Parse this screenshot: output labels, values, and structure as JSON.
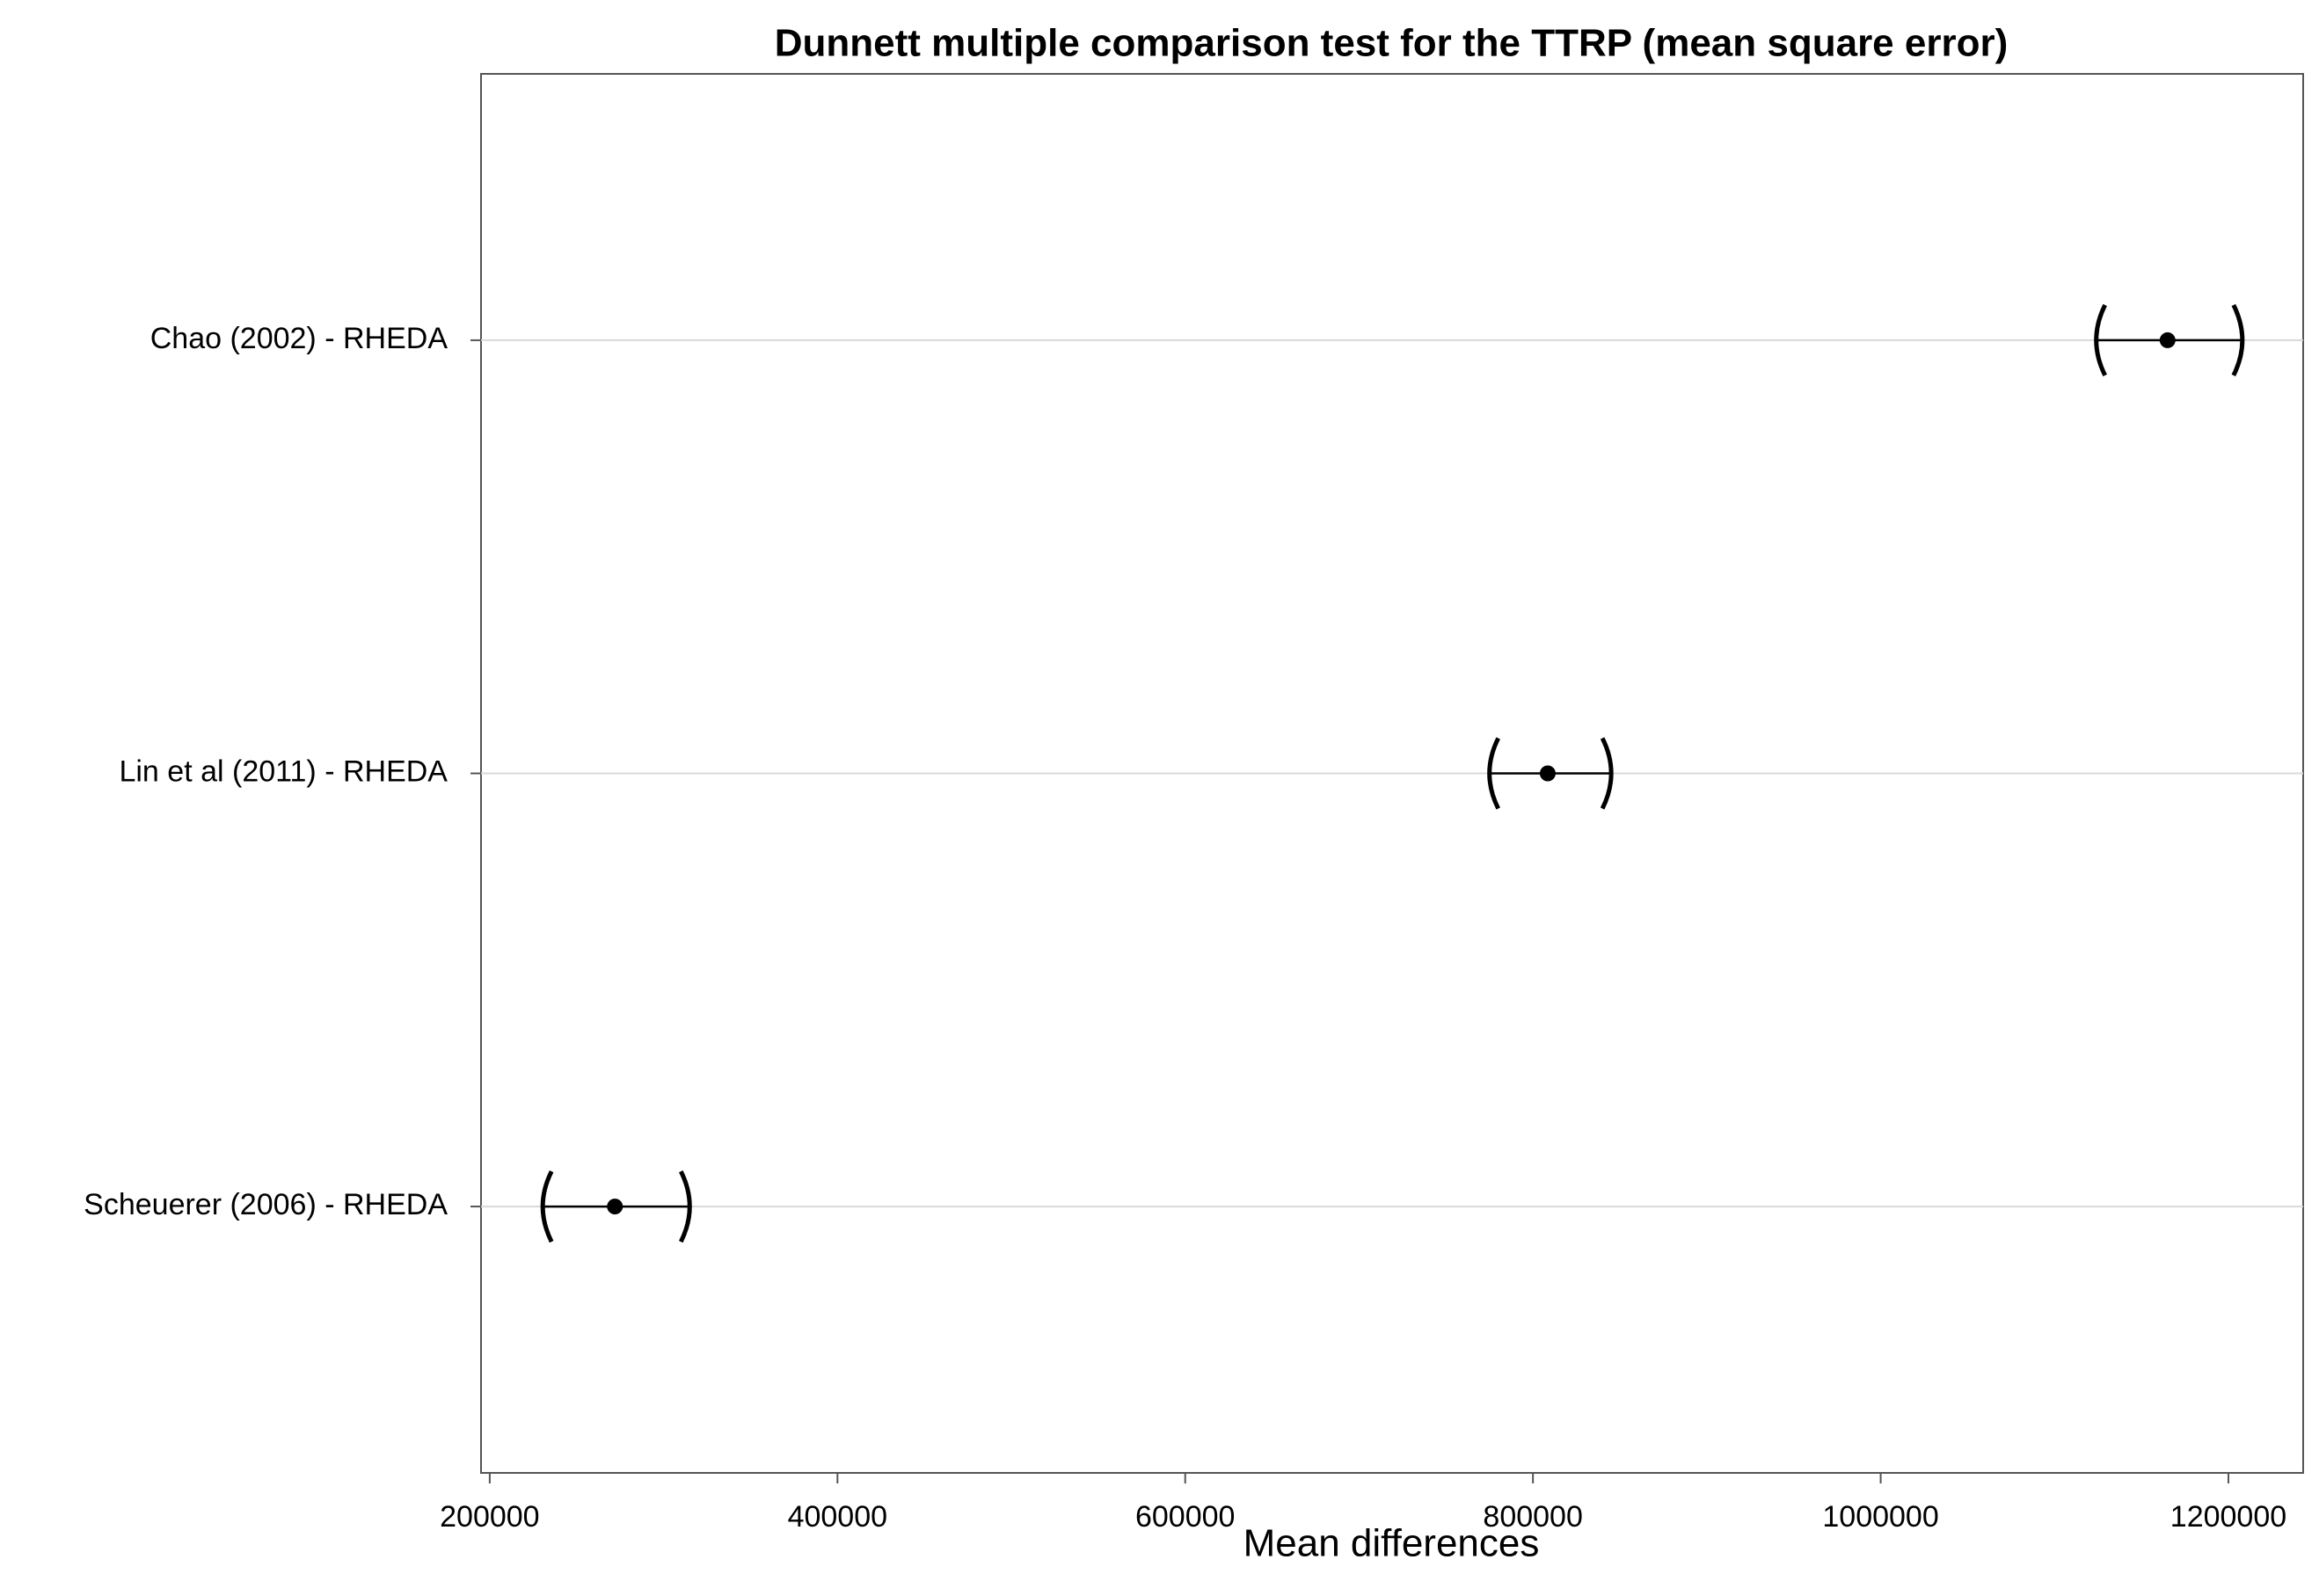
{
  "chart_data": {
    "type": "interval",
    "title": "Dunnett multiple comparison test for the TTRP (mean square error)",
    "x_label": "Mean differences",
    "categories": [
      "Chao (2002) - RHEDA",
      "Lin et al (2011) - RHEDA",
      "Scheuerer (2006) - RHEDA"
    ],
    "values": [
      1165000,
      808500,
      272000
    ],
    "lower": [
      1125000,
      776000,
      231500
    ],
    "upper": [
      1207000,
      844000,
      314000
    ],
    "color": "#000000",
    "xlim": [
      195000,
      1243000
    ],
    "xticks": [
      200000,
      400000,
      600000,
      800000,
      1000000,
      1200000
    ],
    "grid": true
  }
}
